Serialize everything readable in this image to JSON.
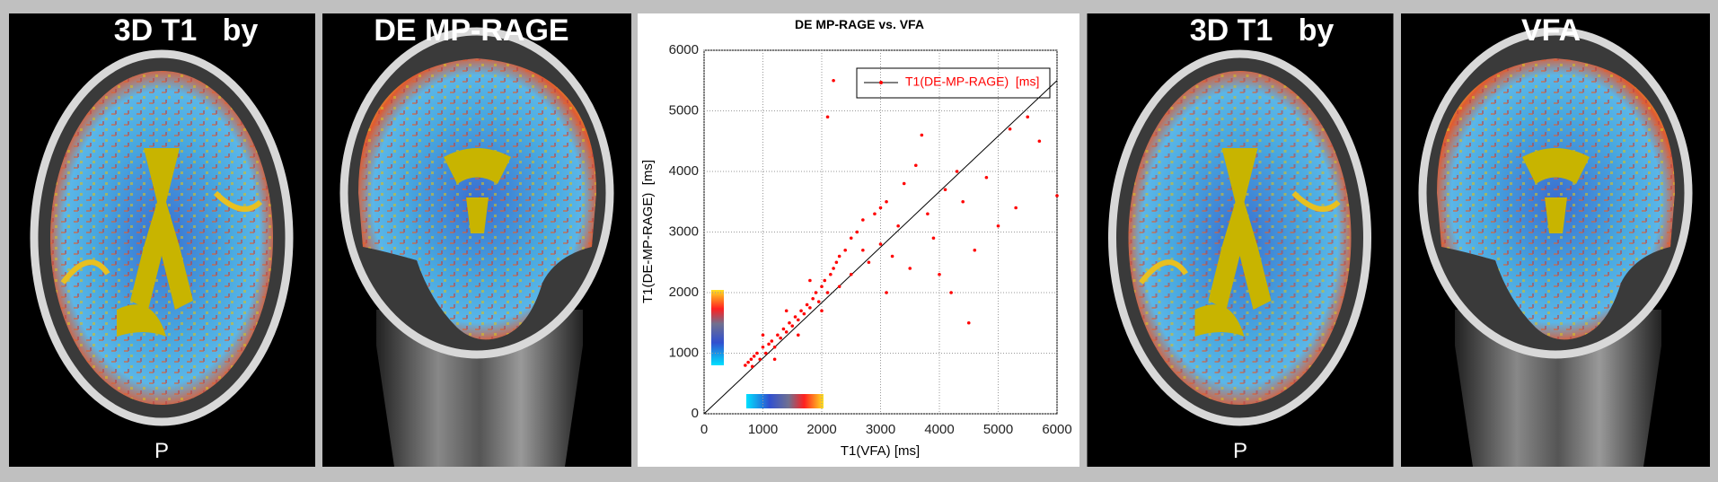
{
  "panels": [
    {
      "title": "3D T1   by",
      "label": "P"
    },
    {
      "title": "DE MP-RAGE"
    },
    {
      "title": "3D T1   by",
      "label": "P"
    },
    {
      "title": "VFA"
    }
  ],
  "chart_data": {
    "type": "scatter",
    "title": "DE MP-RAGE vs. VFA",
    "x_label": "T1(VFA) [ms]",
    "y_label": "T1(DE-MP-RAGE)  [ms]",
    "xlim": [
      0,
      6000
    ],
    "ylim": [
      0,
      6000
    ],
    "xticks": [
      0,
      1000,
      2000,
      3000,
      4000,
      5000,
      6000
    ],
    "yticks": [
      0,
      1000,
      2000,
      3000,
      4000,
      5000,
      6000
    ],
    "grid": true,
    "legend_position": "upper right",
    "series": [
      {
        "name": "T1(DE-MP-RAGE)  [ms]",
        "color": "#ff0000",
        "line_color": "#000000",
        "x": [
          700,
          750,
          800,
          820,
          850,
          900,
          950,
          1000,
          1050,
          1100,
          1150,
          1200,
          1250,
          1300,
          1350,
          1400,
          1450,
          1500,
          1550,
          1600,
          1650,
          1700,
          1750,
          1800,
          1850,
          1900,
          1950,
          2000,
          2050,
          2100,
          2150,
          2200,
          2250,
          2300,
          2400,
          2500,
          2600,
          2700,
          2800,
          2900,
          3000,
          3100,
          3200,
          3300,
          3400,
          3500,
          3600,
          3700,
          3800,
          3900,
          4000,
          4100,
          4200,
          4300,
          4400,
          4500,
          4600,
          4800,
          5000,
          5200,
          5300,
          5500,
          5700,
          6000,
          2200,
          2100,
          1000,
          1200,
          1400,
          1600,
          1800,
          2000,
          2300,
          2500,
          2700,
          3000,
          3100
        ],
        "values": [
          800,
          850,
          900,
          780,
          950,
          1000,
          900,
          1100,
          1000,
          1150,
          1200,
          1100,
          1300,
          1250,
          1400,
          1350,
          1500,
          1450,
          1600,
          1550,
          1700,
          1650,
          1800,
          1750,
          1900,
          2000,
          1850,
          2100,
          2200,
          2000,
          2300,
          2400,
          2500,
          2600,
          2700,
          2900,
          3000,
          3200,
          2500,
          3300,
          2800,
          3500,
          2600,
          3100,
          3800,
          2400,
          4100,
          4600,
          3300,
          2900,
          2300,
          3700,
          2000,
          4000,
          3500,
          1500,
          2700,
          3900,
          3100,
          4700,
          3400,
          4900,
          4500,
          3600,
          5500,
          4900,
          1300,
          900,
          1700,
          1300,
          2200,
          1700,
          2100,
          2300,
          2700,
          3400,
          2000
        ],
        "fit_x": [
          0,
          6000
        ],
        "fit_y": [
          0,
          5500
        ]
      }
    ]
  }
}
